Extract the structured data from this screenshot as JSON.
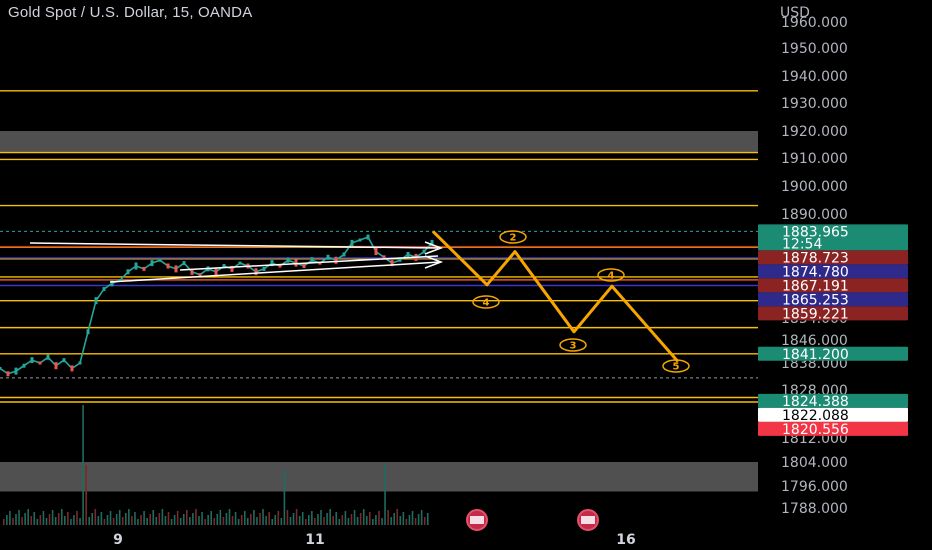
{
  "header": {
    "title": "Gold Spot / U.S. Dollar, 15, OANDA",
    "currency": "USD"
  },
  "chart_data": {
    "type": "line",
    "title": "Gold Spot / U.S. Dollar, 15, OANDA",
    "ylabel": "USD",
    "ylim": [
      1782,
      1962
    ],
    "y_ticks": [
      "1960.000",
      "1950.000",
      "1940.000",
      "1930.000",
      "1920.000",
      "1910.000",
      "1900.000",
      "1890.000",
      "1854.000",
      "1846.000",
      "1838.000",
      "1828.000",
      "1812.000",
      "1804.000",
      "1796.000",
      "1788.000"
    ],
    "y_tick_values": [
      1960,
      1950,
      1940,
      1930,
      1920,
      1910,
      1900,
      1890,
      1854,
      1846,
      1838,
      1828,
      1812,
      1804,
      1796,
      1788
    ],
    "x_ticks": [
      "9",
      "11",
      "16"
    ],
    "price_series": {
      "name": "",
      "x": [
        0,
        1,
        2,
        3,
        4,
        5,
        6,
        7,
        8,
        9,
        10,
        11,
        12,
        13,
        14,
        15,
        16,
        17,
        18,
        19,
        20,
        21,
        22,
        23,
        24,
        25,
        26,
        27,
        28,
        29,
        30,
        31,
        32,
        33,
        34,
        35,
        36,
        37,
        38,
        39,
        40,
        41,
        42,
        43,
        44,
        45,
        46,
        47,
        48,
        49,
        50,
        51,
        52,
        53,
        54
      ],
      "y": [
        1836,
        1834,
        1835,
        1837,
        1839,
        1838,
        1840,
        1837,
        1839,
        1836,
        1838,
        1849,
        1860,
        1864,
        1866,
        1867,
        1870,
        1872,
        1871,
        1873,
        1874,
        1872,
        1871,
        1873,
        1870,
        1869,
        1871,
        1870,
        1872,
        1871,
        1873,
        1872,
        1870,
        1871,
        1873,
        1872,
        1874,
        1873,
        1872,
        1874,
        1873,
        1875,
        1874,
        1876,
        1880,
        1881,
        1882,
        1877,
        1875,
        1873,
        1874,
        1876,
        1875,
        1877,
        1880
      ]
    },
    "horizontal_levels": [
      1934.5,
      1912,
      1909.5,
      1893,
      1878.5,
      1874.5,
      1868.2,
      1867.2,
      1860,
      1850.5,
      1841.2,
      1825.5,
      1824
    ],
    "dashed_levels": [
      1883.965,
      1832.5
    ],
    "zones": [
      {
        "y_from": 1920,
        "y_to": 1912
      },
      {
        "y_from": 1804,
        "y_to": 1794
      }
    ],
    "projection": {
      "points": [
        [
          1883.965,
          0
        ],
        [
          1865.5,
          1
        ],
        [
          1877,
          2
        ],
        [
          1849,
          3
        ],
        [
          1865,
          4
        ],
        [
          1838.5,
          5
        ]
      ],
      "wave_labels": [
        "2",
        "4",
        "3",
        "4",
        "5"
      ]
    },
    "price_badges": [
      {
        "label": "1883.965",
        "sub": "12:54",
        "value": 1883.965,
        "color": "#1c8b74",
        "text_color": "#ffffff"
      },
      {
        "label": "1878.723",
        "value": 1878.723,
        "color": "#8b2323",
        "text_color": "#ffffff"
      },
      {
        "label": "1874.780",
        "value": 1874.78,
        "color": "#2d2a8c",
        "text_color": "#ffffff"
      },
      {
        "label": "1867.191",
        "value": 1867.191,
        "color": "#8b2323",
        "text_color": "#ffffff"
      },
      {
        "label": "1865.253",
        "value": 1865.253,
        "color": "#2d2a8c",
        "text_color": "#ffffff"
      },
      {
        "label": "1859.221",
        "value": 1859.221,
        "color": "#8b2323",
        "text_color": "#ffffff"
      },
      {
        "label": "1841.200",
        "value": 1841.2,
        "color": "#1c8b74",
        "text_color": "#ffffff"
      },
      {
        "label": "1824.388",
        "value": 1824.388,
        "color": "#1c8b74",
        "text_color": "#ffffff"
      },
      {
        "label": "1822.088",
        "value": 1822.088,
        "color": "#ffffff",
        "text_color": "#000000"
      },
      {
        "label": "1820.556",
        "value": 1820.556,
        "color": "#f23645",
        "text_color": "#ffffff"
      }
    ],
    "colors": {
      "background": "#000000",
      "level_line": "#f7c000",
      "projection": "#f7a600",
      "up_candle": "#26a69a",
      "down_candle": "#ef5350",
      "zone": "#6b6b6b"
    }
  }
}
